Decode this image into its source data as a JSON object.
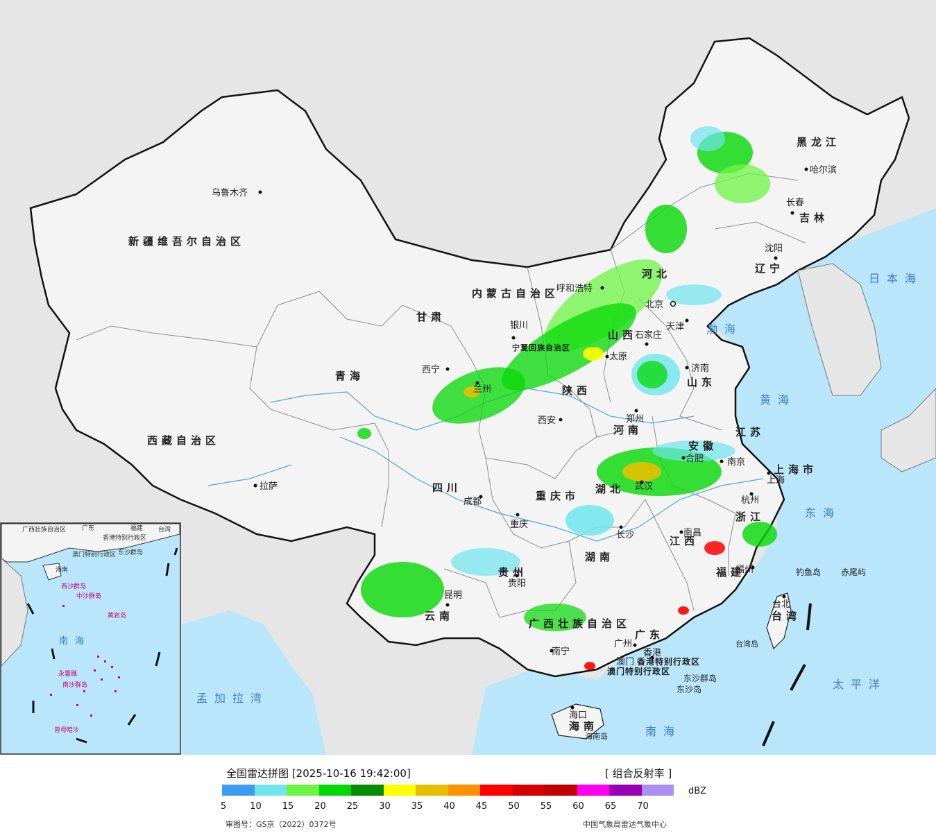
{
  "map": {
    "sea_labels": [
      "日本海",
      "渤海",
      "黄海",
      "东海",
      "太平洋",
      "南海",
      "孟加拉湾"
    ],
    "province_labels": [
      "新疆维吾尔自治区",
      "西藏自治区",
      "青海",
      "甘肃",
      "四川",
      "云南",
      "黑龙江",
      "吉林",
      "辽宁",
      "河北",
      "山东",
      "山西",
      "陕西",
      "河南",
      "江苏",
      "安徽",
      "湖北",
      "湖南",
      "江西",
      "浙江",
      "福建",
      "广东",
      "贵州",
      "重庆市",
      "上海市",
      "台湾",
      "海南",
      "广西壮族自治区",
      "内蒙古自治区",
      "宁夏回族自治区",
      "香港特别行政区",
      "澳门特别行政区"
    ],
    "cities": [
      "乌鲁木齐",
      "拉萨",
      "西宁",
      "银川",
      "兰州",
      "成都",
      "重庆",
      "昆明",
      "贵阳",
      "南宁",
      "广州",
      "香港",
      "澳门",
      "海口",
      "海南岛",
      "长沙",
      "武汉",
      "南昌",
      "福州",
      "台北",
      "台湾岛",
      "杭州",
      "上海",
      "南京",
      "合肥",
      "郑州",
      "西安",
      "太原",
      "石家庄",
      "济南",
      "天津",
      "北京",
      "呼和浩特",
      "沈阳",
      "长春",
      "哈尔滨",
      "钓鱼岛",
      "赤尾屿",
      "东沙群岛",
      "东沙岛"
    ],
    "inset_labels": [
      "广西壮族自治区",
      "广东",
      "福建",
      "台湾",
      "香港特别行政区",
      "澳门特别行政区",
      "东沙群岛",
      "海南",
      "西沙群岛",
      "中沙群岛",
      "黄岩岛",
      "南海",
      "永暑礁",
      "南沙群岛",
      "曾母暗沙"
    ]
  },
  "legend": {
    "title": "全国雷达拼图",
    "timestamp": "[2025-10-16 19:42:00]",
    "product": "[ 组合反射率 ]",
    "unit": "dBZ",
    "colors": [
      "#3d9cf0",
      "#6ee6ec",
      "#6ef544",
      "#04d804",
      "#058c05",
      "#ffff00",
      "#e6bf00",
      "#ff9000",
      "#ff0000",
      "#d40000",
      "#c00000",
      "#ff00f0",
      "#9800b5",
      "#ac90f0"
    ],
    "ticks": [
      "5",
      "10",
      "15",
      "20",
      "25",
      "30",
      "35",
      "40",
      "45",
      "50",
      "55",
      "60",
      "65",
      "70"
    ]
  },
  "footer": {
    "review_number": "审图号：GS京（2022）0372号",
    "source": "中国气象局雷达气象中心"
  }
}
